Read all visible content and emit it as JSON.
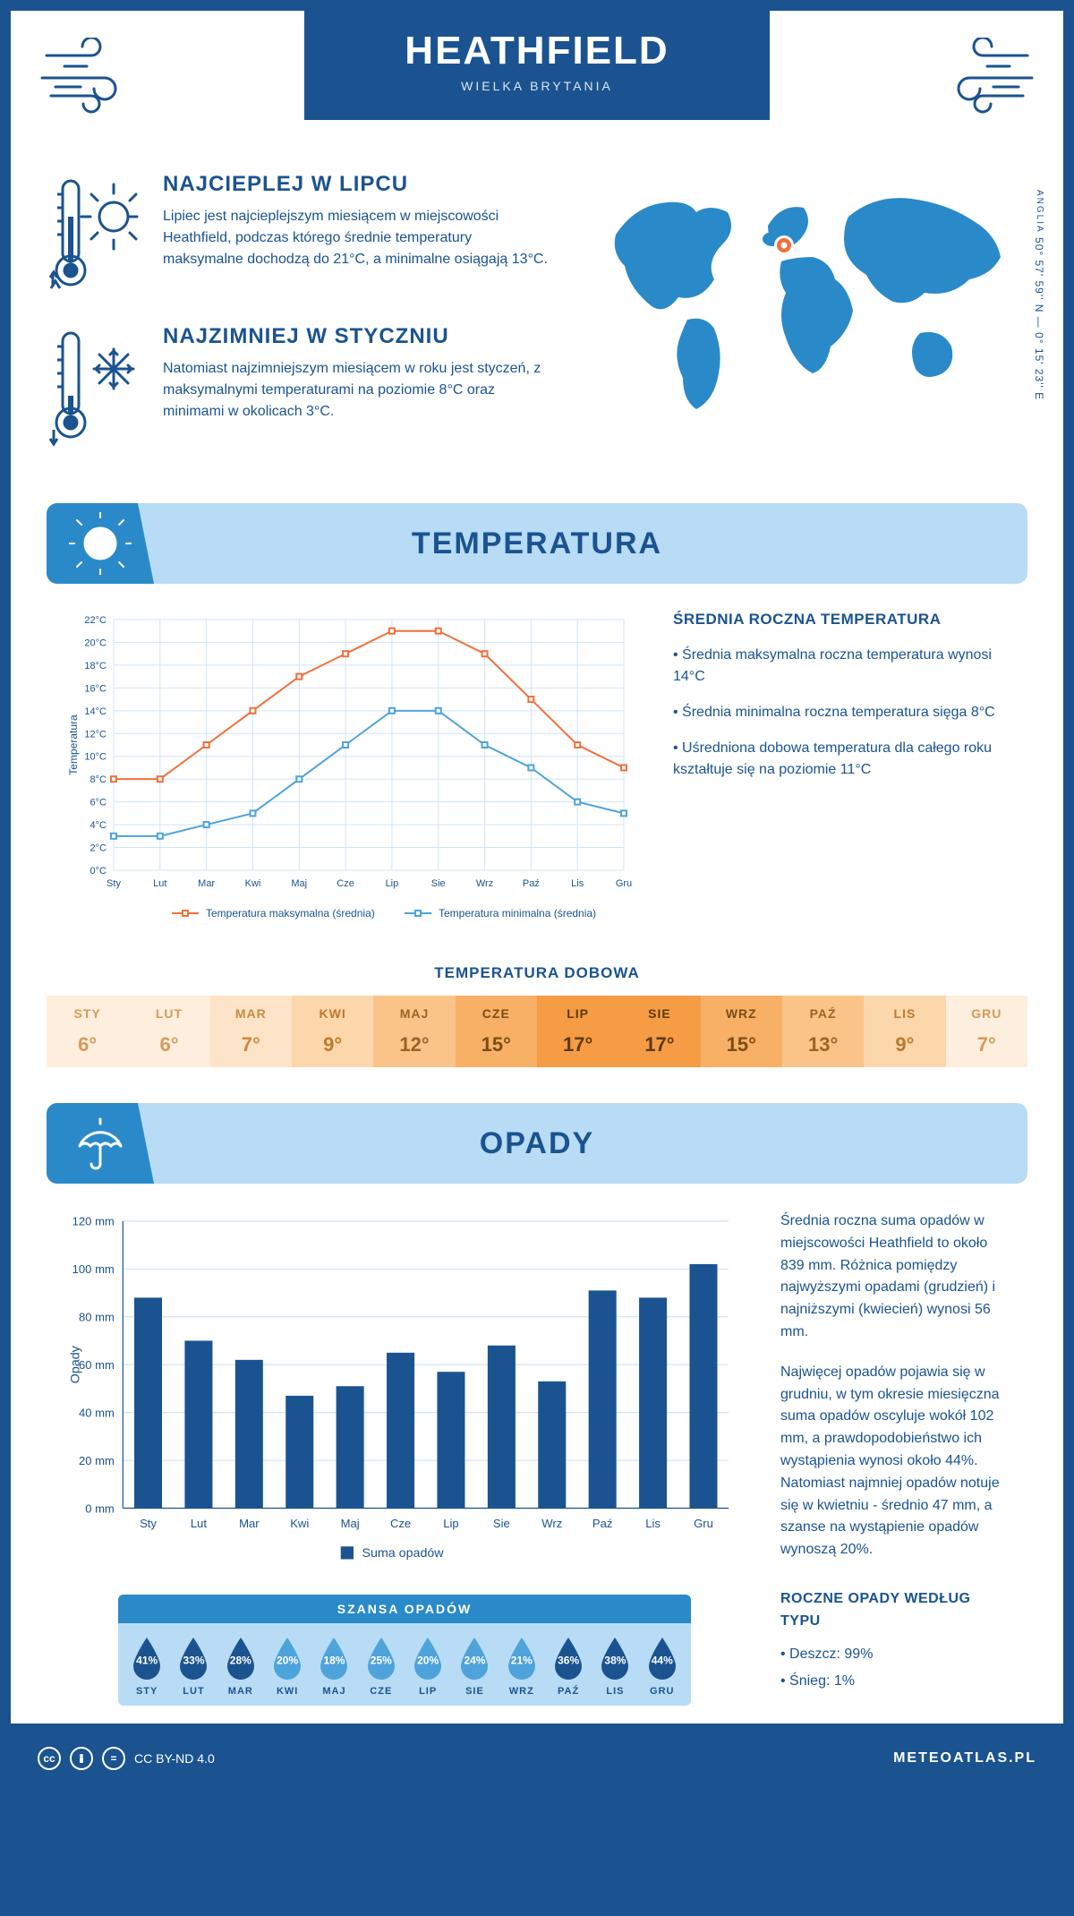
{
  "header": {
    "title": "HEATHFIELD",
    "subtitle": "WIELKA BRYTANIA"
  },
  "coords": {
    "text": "50° 57' 59'' N — 0° 15' 23'' E",
    "region": "ANGLIA"
  },
  "intro": {
    "warm": {
      "title": "NAJCIEPLEJ W LIPCU",
      "text": "Lipiec jest najcieplejszym miesiącem w miejscowości Heathfield, podczas którego średnie temperatury maksymalne dochodzą do 21°C, a minimalne osiągają 13°C."
    },
    "cold": {
      "title": "NAJZIMNIEJ W STYCZNIU",
      "text": "Natomiast najzimniejszym miesiącem w roku jest styczeń, z maksymalnymi temperaturami na poziomie 8°C oraz minimami w okolicach 3°C."
    }
  },
  "colors": {
    "primary": "#1b5390",
    "lightblue": "#b8dcf5",
    "midblue": "#2a8ac9",
    "orange": "#f36f3a",
    "lineblue": "#4fa3db",
    "grid": "#d0e4f5",
    "barfill": "#1b5390"
  },
  "months": [
    "Sty",
    "Lut",
    "Mar",
    "Kwi",
    "Maj",
    "Cze",
    "Lip",
    "Sie",
    "Wrz",
    "Paź",
    "Lis",
    "Gru"
  ],
  "months_upper": [
    "STY",
    "LUT",
    "MAR",
    "KWI",
    "MAJ",
    "CZE",
    "LIP",
    "SIE",
    "WRZ",
    "PAŹ",
    "LIS",
    "GRU"
  ],
  "temperature": {
    "section_title": "TEMPERATURA",
    "chart": {
      "type": "line",
      "ylabel": "Temperatura",
      "ymin": 0,
      "ymax": 22,
      "ystep": 2,
      "yunit": "°C",
      "max_series": {
        "label": "Temperatura maksymalna (średnia)",
        "color": "#f36f3a",
        "values": [
          8,
          8,
          11,
          14,
          17,
          19,
          21,
          21,
          19,
          15,
          11,
          9
        ]
      },
      "min_series": {
        "label": "Temperatura minimalna (średnia)",
        "color": "#4fa3db",
        "values": [
          3,
          3,
          4,
          5,
          8,
          11,
          14,
          14,
          11,
          9,
          6,
          5
        ]
      }
    },
    "info": {
      "title": "ŚREDNIA ROCZNA TEMPERATURA",
      "items": [
        "• Średnia maksymalna roczna temperatura wynosi 14°C",
        "• Średnia minimalna roczna temperatura sięga 8°C",
        "• Uśredniona dobowa temperatura dla całego roku kształtuje się na poziomie 11°C"
      ]
    },
    "daily": {
      "title": "TEMPERATURA DOBOWA",
      "values": [
        "6°",
        "6°",
        "7°",
        "9°",
        "12°",
        "15°",
        "17°",
        "17°",
        "15°",
        "13°",
        "9°",
        "7°"
      ],
      "cell_colors": [
        "#fdeedd",
        "#fdeedd",
        "#fde3c7",
        "#fcd7ac",
        "#fac488",
        "#f7b066",
        "#f59c45",
        "#f59c45",
        "#f7b066",
        "#fac488",
        "#fcd7ac",
        "#fdeedd"
      ],
      "text_colors": [
        "#d49b5a",
        "#d49b5a",
        "#c88a42",
        "#bd7a2c",
        "#9c6420",
        "#7a4d15",
        "#5c3a0f",
        "#5c3a0f",
        "#7a4d15",
        "#9c6420",
        "#bd7a2c",
        "#d49b5a"
      ]
    }
  },
  "precip": {
    "section_title": "OPADY",
    "chart": {
      "type": "bar",
      "ylabel": "Opady",
      "ymin": 0,
      "ymax": 120,
      "ystep": 20,
      "yunit": " mm",
      "bar_color": "#1b5390",
      "legend": "Suma opadów",
      "values": [
        88,
        70,
        62,
        47,
        51,
        65,
        57,
        68,
        53,
        91,
        88,
        102
      ]
    },
    "info": {
      "para1": "Średnia roczna suma opadów w miejscowości Heathfield to około 839 mm. Różnica pomiędzy najwyższymi opadami (grudzień) i najniższymi (kwiecień) wynosi 56 mm.",
      "para2": "Najwięcej opadów pojawia się w grudniu, w tym okresie miesięczna suma opadów oscyluje wokół 102 mm, a prawdopodobieństwo ich wystąpienia wynosi około 44%. Natomiast najmniej opadów notuje się w kwietniu - średnio 47 mm, a szanse na wystąpienie opadów wynoszą 20%."
    },
    "chance": {
      "title": "SZANSA OPADÓW",
      "values": [
        "41%",
        "33%",
        "28%",
        "20%",
        "18%",
        "25%",
        "20%",
        "24%",
        "21%",
        "36%",
        "38%",
        "44%"
      ],
      "fills": [
        "#1b5390",
        "#1b5390",
        "#1b5390",
        "#4fa3db",
        "#4fa3db",
        "#4fa3db",
        "#4fa3db",
        "#4fa3db",
        "#4fa3db",
        "#1b5390",
        "#1b5390",
        "#1b5390"
      ]
    },
    "by_type": {
      "title": "ROCZNE OPADY WEDŁUG TYPU",
      "items": [
        "• Deszcz: 99%",
        "• Śnieg: 1%"
      ]
    }
  },
  "footer": {
    "license": "CC BY-ND 4.0",
    "site": "METEOATLAS.PL"
  }
}
